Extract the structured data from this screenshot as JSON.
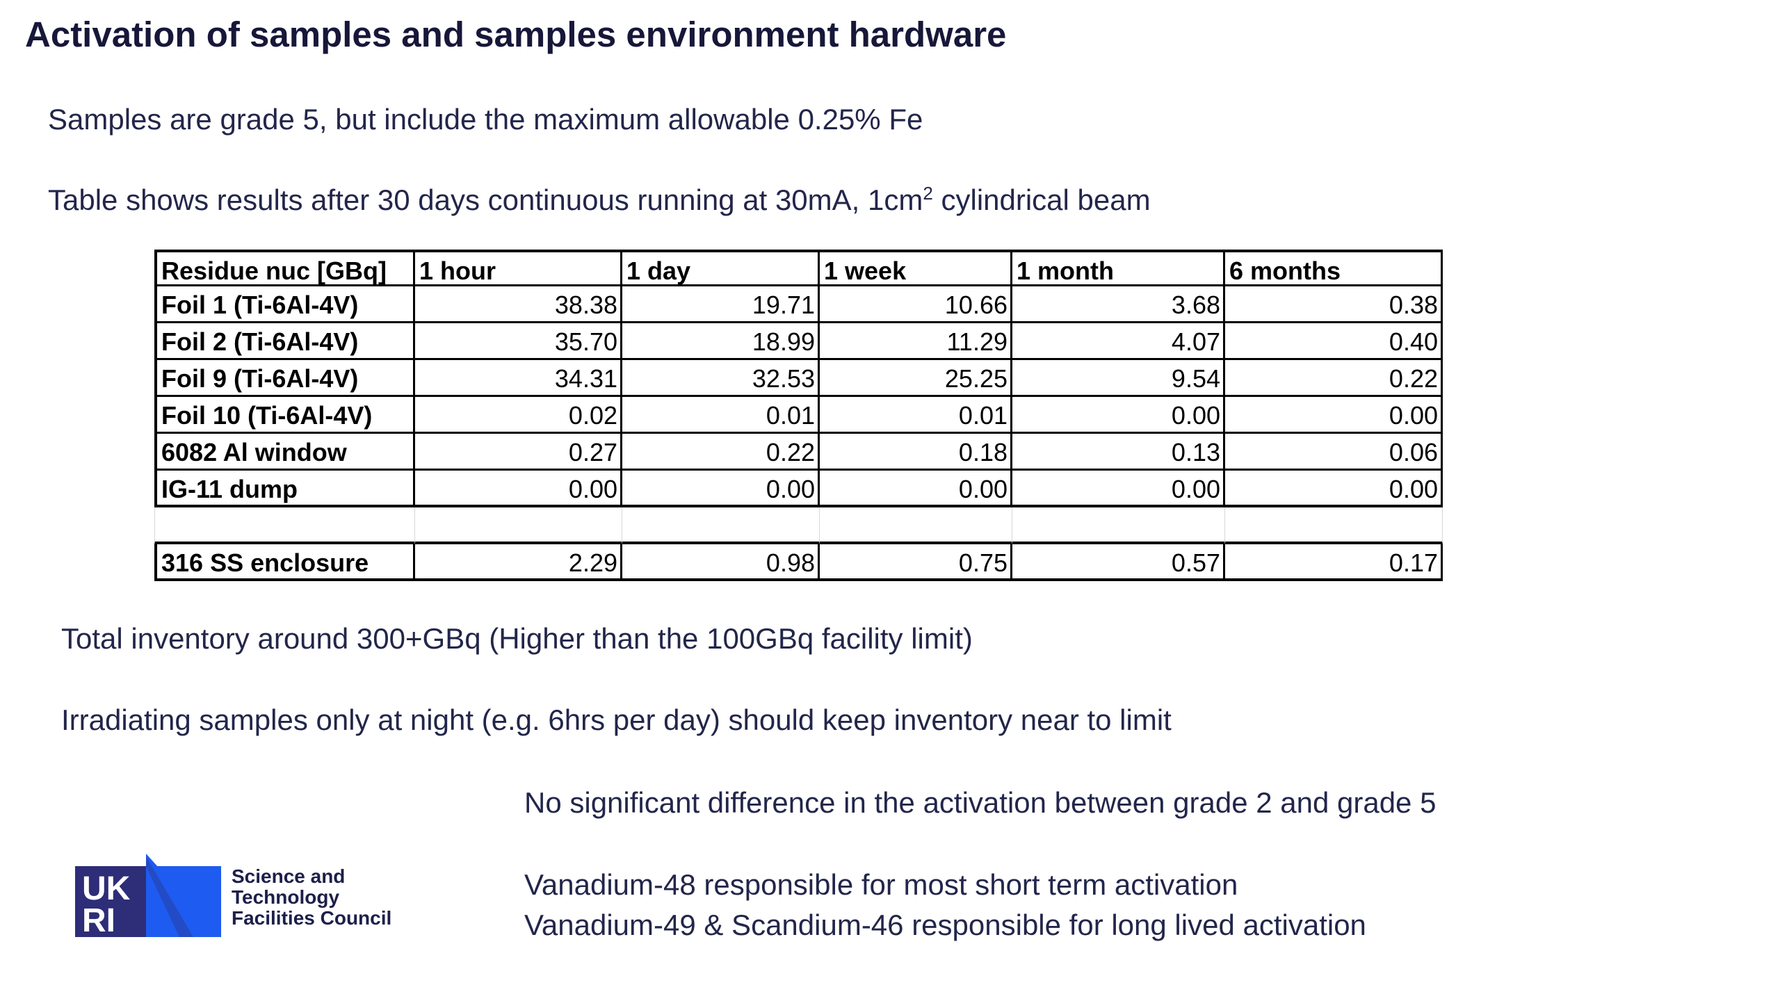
{
  "title": "Activation of samples and samples environment hardware",
  "samples_note": "Samples are grade 5, but include the maximum allowable 0.25% Fe",
  "table_caption": {
    "before": "Table shows results after 30 days continuous running at 30mA, 1cm",
    "superscript": "2",
    "after": " cylindrical beam"
  },
  "table": {
    "headers": [
      "Residue nuc [GBq]",
      "1 hour",
      "1 day",
      "1 week",
      "1 month",
      "6 months"
    ],
    "rows": [
      [
        "Foil 1 (Ti-6Al-4V)",
        "38.38",
        "19.71",
        "10.66",
        "3.68",
        "0.38"
      ],
      [
        "Foil 2 (Ti-6Al-4V)",
        "35.70",
        "18.99",
        "11.29",
        "4.07",
        "0.40"
      ],
      [
        "Foil 9 (Ti-6Al-4V)",
        "34.31",
        "32.53",
        "25.25",
        "9.54",
        "0.22"
      ],
      [
        "Foil 10 (Ti-6Al-4V)",
        "0.02",
        "0.01",
        "0.01",
        "0.00",
        "0.00"
      ],
      [
        "6082 Al window",
        "0.27",
        "0.22",
        "0.18",
        "0.13",
        "0.06"
      ],
      [
        "IG-11 dump",
        "0.00",
        "0.00",
        "0.00",
        "0.00",
        "0.00"
      ]
    ],
    "enclosure": [
      "316 SS enclosure",
      "2.29",
      "0.98",
      "0.75",
      "0.57",
      "0.17"
    ]
  },
  "total_inventory": "Total inventory around 300+GBq (Higher than the 100GBq facility limit)",
  "irradiating_note": "Irradiating samples only at night (e.g. 6hrs per day) should keep inventory near to limit",
  "grade_note": "No significant difference in the activation between grade 2 and grade 5",
  "vanadium48_note": "Vanadium-48 responsible for most  short term activation",
  "vanadium49_note": "Vanadium-49 & Scandium-46 responsible for long lived activation",
  "logo": {
    "mark_top": "UK",
    "mark_bottom": "RI",
    "line1": "Science and",
    "line2": "Technology",
    "line3": "Facilities Council",
    "colors": {
      "dark": "#2e2d78",
      "blue": "#1e5bf0",
      "white": "#ffffff"
    }
  }
}
